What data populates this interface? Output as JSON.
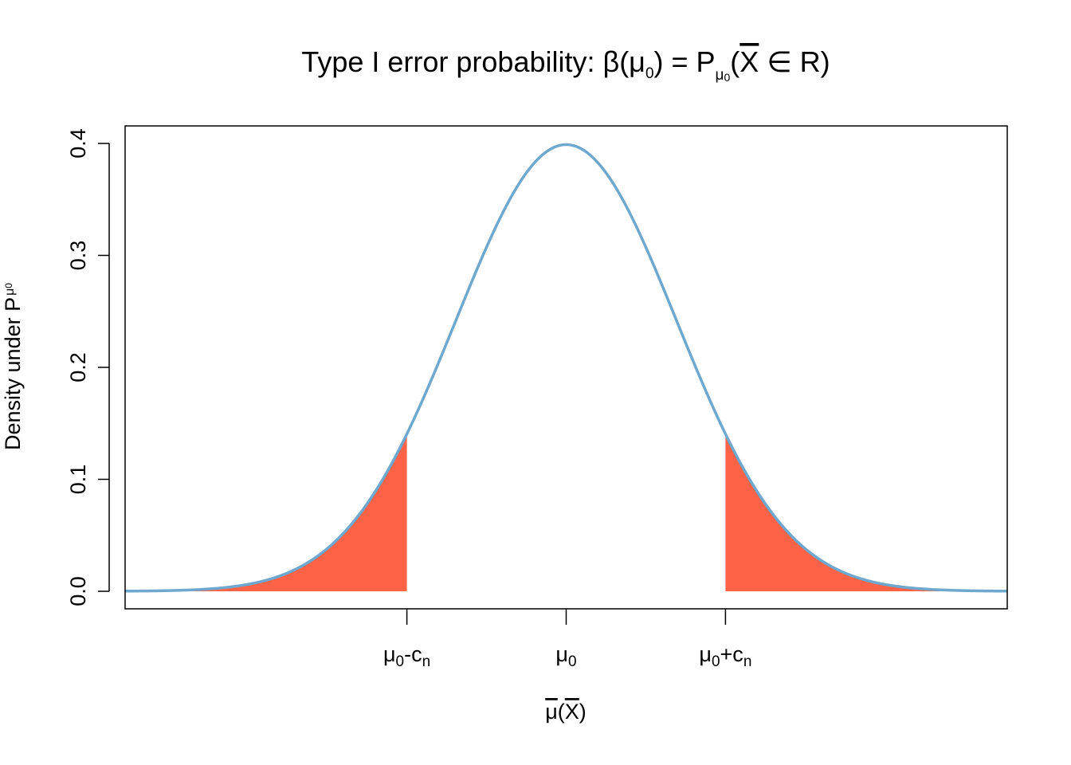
{
  "chart_data": {
    "type": "line",
    "title": {
      "main": "Type I error probability: β(μ",
      "main_sub": "0",
      "eq": ") = P",
      "p_sub": "μ",
      "p_sub_sub": "0",
      "rest_open": "(",
      "xbar": "X",
      "rest_close": " ∈ R)"
    },
    "xlabel": {
      "mu": "μ",
      "open": "(",
      "xbar": "X",
      "close": ")"
    },
    "ylabel": {
      "text": "Density under P",
      "sub": "μ",
      "sub_sub": "0"
    },
    "x_domain": [
      -4,
      4
    ],
    "ylim": [
      0,
      0.4
    ],
    "y_ticks": [
      "0.0",
      "0.1",
      "0.2",
      "0.3",
      "0.4"
    ],
    "y_tick_values": [
      0,
      0.1,
      0.2,
      0.3,
      0.4
    ],
    "x_ticks": [
      {
        "value": -1.4446,
        "base": "μ",
        "base_sub": "0",
        "op": "-c",
        "op_sub": "n"
      },
      {
        "value": 0,
        "base": "μ",
        "base_sub": "0",
        "op": "",
        "op_sub": ""
      },
      {
        "value": 1.4446,
        "base": "μ",
        "base_sub": "0",
        "op": "+c",
        "op_sub": "n"
      }
    ],
    "series": [
      {
        "curve": "standard normal density",
        "mean": 0,
        "sd": 1,
        "color": "#6ea8cf"
      }
    ],
    "rejection_region": {
      "lower": -1.4446,
      "upper": 1.4446,
      "color": "#ff6347"
    },
    "grid": false,
    "legend": "none"
  }
}
